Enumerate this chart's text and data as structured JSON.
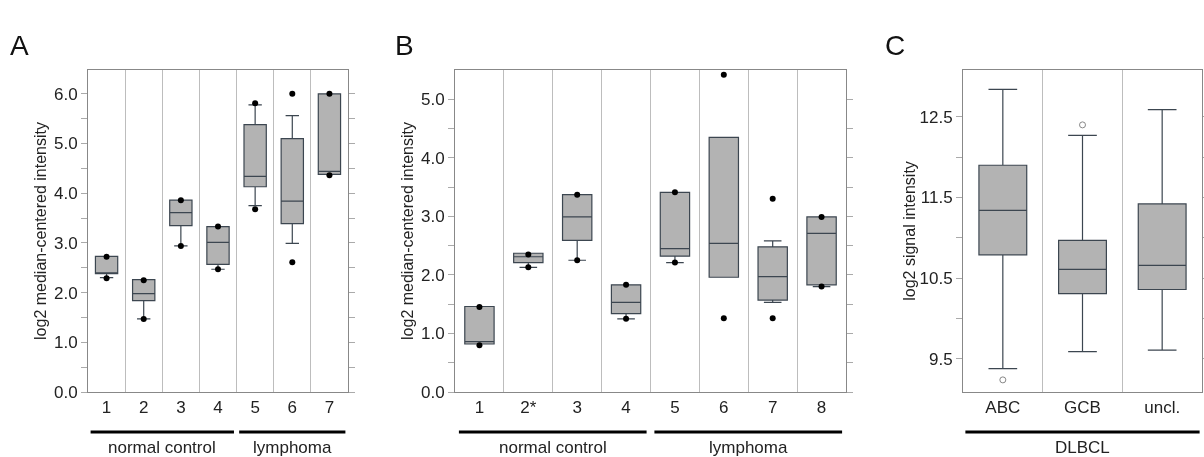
{
  "chart_data": [
    {
      "type": "box",
      "title": "A",
      "ylabel": "log2 median-centered intensity",
      "categories": [
        "1",
        "2",
        "3",
        "4",
        "5",
        "6",
        "7"
      ],
      "ylim": [
        0,
        6.48
      ],
      "yticks": [
        {
          "value": 0,
          "label": "0.0"
        },
        {
          "value": 0.5,
          "label": null
        },
        {
          "value": 1,
          "label": "1.0"
        },
        {
          "value": 1.5,
          "label": null
        },
        {
          "value": 2,
          "label": "2.0"
        },
        {
          "value": 2.5,
          "label": null
        },
        {
          "value": 3,
          "label": "3.0"
        },
        {
          "value": 3.5,
          "label": null
        },
        {
          "value": 4,
          "label": "4.0"
        },
        {
          "value": 4.5,
          "label": null
        },
        {
          "value": 5,
          "label": "5.0"
        },
        {
          "value": 5.5,
          "label": null
        },
        {
          "value": 6,
          "label": "6.0"
        }
      ],
      "grid": "x",
      "marker": "circle",
      "annotations": [
        "normal control",
        "lymphoma"
      ],
      "series": [
        {
          "type": "box",
          "color": "#b3b3b3",
          "boxes": [
            {
              "low": 2.3,
              "q1": 2.38,
              "median": 2.4,
              "q3": 2.73,
              "high": 2.73
            },
            {
              "low": 1.47,
              "q1": 1.84,
              "median": 1.98,
              "q3": 2.26,
              "high": 2.26
            },
            {
              "low": 2.94,
              "q1": 3.35,
              "median": 3.61,
              "q3": 3.86,
              "high": 3.86
            },
            {
              "low": 2.47,
              "q1": 2.57,
              "median": 3.01,
              "q3": 3.33,
              "high": 3.33
            },
            {
              "low": 3.75,
              "q1": 4.13,
              "median": 4.34,
              "q3": 5.38,
              "high": 5.78
            },
            {
              "low": 2.99,
              "q1": 3.39,
              "median": 3.84,
              "q3": 5.1,
              "high": 5.56
            },
            {
              "low": 4.38,
              "q1": 4.38,
              "median": 4.44,
              "q3": 6.0,
              "high": 6.0
            }
          ]
        },
        {
          "type": "scatter",
          "color": "#000000",
          "x": [
            "1",
            "1",
            "2",
            "2",
            "3",
            "3",
            "4",
            "4",
            "5",
            "5",
            "6",
            "6",
            "7",
            "7"
          ],
          "values": [
            2.72,
            2.29,
            2.25,
            1.47,
            3.86,
            2.94,
            3.33,
            2.47,
            5.81,
            3.68,
            6.0,
            2.61,
            6.0,
            4.36
          ]
        }
      ]
    },
    {
      "type": "box",
      "title": "B",
      "ylabel": "log2 median-centered intensity",
      "categories": [
        "1",
        "2*",
        "3",
        "4",
        "5",
        "6",
        "7",
        "8"
      ],
      "ylim": [
        0,
        5.5
      ],
      "yticks": [
        {
          "value": 0,
          "label": "0.0"
        },
        {
          "value": 0.5,
          "label": null
        },
        {
          "value": 1,
          "label": "1.0"
        },
        {
          "value": 1.5,
          "label": null
        },
        {
          "value": 2,
          "label": "2.0"
        },
        {
          "value": 2.5,
          "label": null
        },
        {
          "value": 3,
          "label": "3.0"
        },
        {
          "value": 3.5,
          "label": null
        },
        {
          "value": 4,
          "label": "4.0"
        },
        {
          "value": 4.5,
          "label": null
        },
        {
          "value": 5,
          "label": "5.0"
        }
      ],
      "grid": "x",
      "marker": "circle",
      "annotations": [
        "normal control",
        "lymphoma"
      ],
      "series": [
        {
          "type": "box",
          "color": "#b3b3b3",
          "boxes": [
            {
              "low": 0.82,
              "q1": 0.82,
              "median": 0.86,
              "q3": 1.46,
              "high": 1.46
            },
            {
              "low": 2.13,
              "q1": 2.21,
              "median": 2.31,
              "q3": 2.37,
              "high": 2.37
            },
            {
              "low": 2.25,
              "q1": 2.59,
              "median": 2.99,
              "q3": 3.37,
              "high": 3.37
            },
            {
              "low": 1.25,
              "q1": 1.34,
              "median": 1.53,
              "q3": 1.83,
              "high": 1.83
            },
            {
              "low": 2.21,
              "q1": 2.32,
              "median": 2.45,
              "q3": 3.41,
              "high": 3.41
            },
            {
              "low": 1.96,
              "q1": 1.96,
              "median": 2.54,
              "q3": 4.35,
              "high": 4.35
            },
            {
              "low": 1.53,
              "q1": 1.57,
              "median": 1.97,
              "q3": 2.48,
              "high": 2.58
            },
            {
              "low": 1.8,
              "q1": 1.83,
              "median": 2.71,
              "q3": 2.99,
              "high": 2.99
            }
          ]
        },
        {
          "type": "scatter",
          "color": "#000000",
          "x": [
            "1",
            "1",
            "2*",
            "2*",
            "3",
            "3",
            "4",
            "4",
            "5",
            "5",
            "6",
            "6",
            "7",
            "7",
            "8",
            "8"
          ],
          "values": [
            1.45,
            0.8,
            2.35,
            2.13,
            3.37,
            2.25,
            1.83,
            1.25,
            3.41,
            2.21,
            5.42,
            1.26,
            3.3,
            1.26,
            2.99,
            1.8
          ]
        }
      ]
    },
    {
      "type": "box",
      "title": "C",
      "ylabel": "log2 signal intensity",
      "categories": [
        "ABC",
        "GCB",
        "uncl."
      ],
      "ylim": [
        9.09,
        13.08
      ],
      "yticks": [
        9.5,
        {
          "value": 10,
          "label": null
        },
        10.5,
        {
          "value": 11,
          "label": null
        },
        11.5,
        {
          "value": 12,
          "label": null
        },
        12.5
      ],
      "grid": "x",
      "annotations": [
        "DLBCL"
      ],
      "series": [
        {
          "type": "box",
          "color": "#b3b3b3",
          "boxes": [
            {
              "low": 9.38,
              "q1": 10.79,
              "median": 11.34,
              "q3": 11.9,
              "high": 12.84,
              "outliers": [
                9.24
              ]
            },
            {
              "low": 9.59,
              "q1": 10.31,
              "median": 10.61,
              "q3": 10.97,
              "high": 12.27,
              "outliers": [
                12.4
              ]
            },
            {
              "low": 9.61,
              "q1": 10.36,
              "median": 10.66,
              "q3": 11.42,
              "high": 12.59
            }
          ]
        }
      ]
    }
  ]
}
